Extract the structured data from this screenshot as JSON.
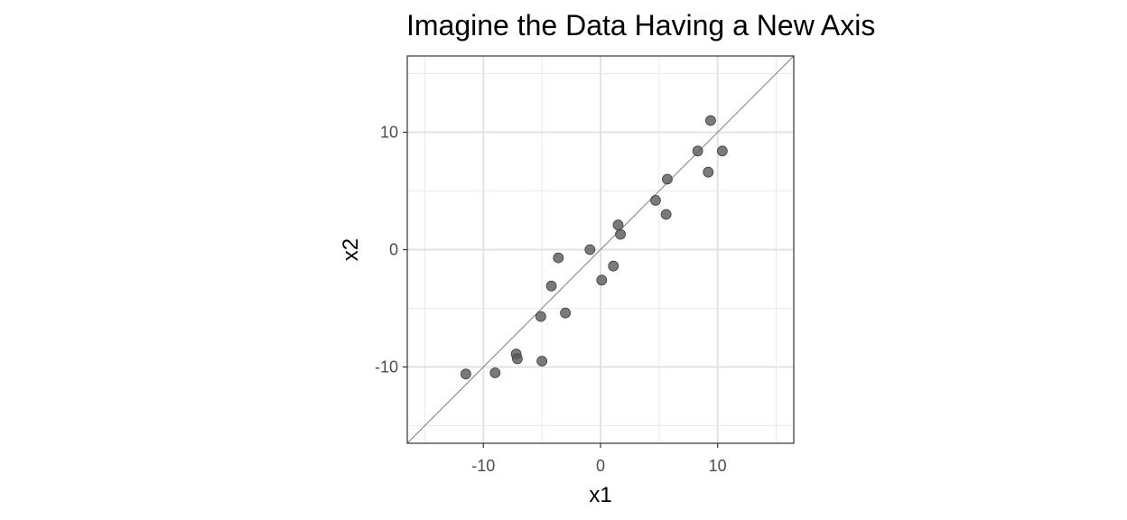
{
  "chart_data": {
    "type": "scatter",
    "title": "Imagine the Data Having a New Axis",
    "xlabel": "x1",
    "ylabel": "x2",
    "xlim": [
      -16.5,
      16.5
    ],
    "ylim": [
      -16.5,
      16.5
    ],
    "x_ticks": [
      -10,
      0,
      10
    ],
    "y_ticks": [
      -10,
      0,
      10
    ],
    "x_tick_labels": [
      "-10",
      "0",
      "10"
    ],
    "y_tick_labels": [
      "-10",
      "0",
      "10"
    ],
    "grid": true,
    "reference_line": {
      "slope": 1,
      "intercept": 0
    },
    "point_color": "#595959",
    "line_color": "#7f7f7f",
    "points": [
      {
        "x": -11.5,
        "y": -10.6
      },
      {
        "x": -9.0,
        "y": -10.5
      },
      {
        "x": -7.2,
        "y": -8.9
      },
      {
        "x": -7.1,
        "y": -9.3
      },
      {
        "x": -5.0,
        "y": -9.5
      },
      {
        "x": -5.1,
        "y": -5.7
      },
      {
        "x": -3.0,
        "y": -5.4
      },
      {
        "x": -4.2,
        "y": -3.1
      },
      {
        "x": -3.6,
        "y": -0.7
      },
      {
        "x": -0.9,
        "y": 0.0
      },
      {
        "x": 0.1,
        "y": -2.6
      },
      {
        "x": 1.1,
        "y": -1.4
      },
      {
        "x": 1.5,
        "y": 2.1
      },
      {
        "x": 1.7,
        "y": 1.3
      },
      {
        "x": 4.7,
        "y": 4.2
      },
      {
        "x": 5.7,
        "y": 6.0
      },
      {
        "x": 5.6,
        "y": 3.0
      },
      {
        "x": 8.3,
        "y": 8.4
      },
      {
        "x": 9.2,
        "y": 6.6
      },
      {
        "x": 9.4,
        "y": 11.0
      },
      {
        "x": 10.4,
        "y": 8.4
      }
    ]
  }
}
